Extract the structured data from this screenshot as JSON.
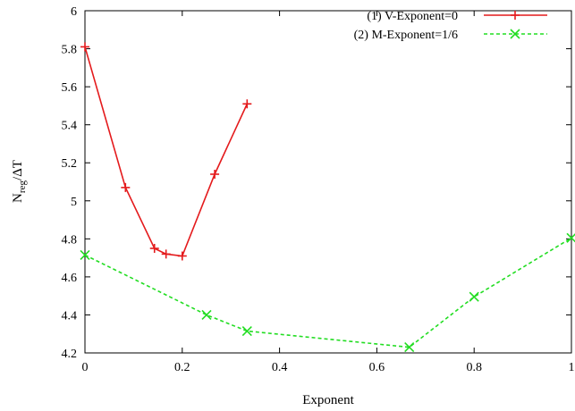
{
  "chart_data": {
    "type": "line",
    "xlabel": "Exponent",
    "ylabel_main": "N",
    "ylabel_sub": "reg",
    "ylabel_tail": "/ΔT",
    "xlim": [
      0,
      1
    ],
    "ylim": [
      4.2,
      6
    ],
    "x_ticks": [
      0,
      0.2,
      0.4,
      0.6,
      0.8,
      1
    ],
    "x_tick_labels": [
      "0",
      "0.2",
      "0.4",
      "0.6",
      "0.8",
      "1"
    ],
    "y_ticks": [
      4.2,
      4.4,
      4.6,
      4.8,
      5,
      5.2,
      5.4,
      5.6,
      5.8,
      6
    ],
    "y_tick_labels": [
      "4.2",
      "4.4",
      "4.6",
      "4.8",
      "5",
      "5.2",
      "5.4",
      "5.6",
      "5.8",
      "6"
    ],
    "grid": false,
    "legend_position": "top-right",
    "series": [
      {
        "name": "(1) V-Exponent=0",
        "color": "#e41a1c",
        "line_style": "solid",
        "marker": "plus",
        "x": [
          0,
          0.0833,
          0.1429,
          0.1667,
          0.2,
          0.2667,
          0.3333
        ],
        "y": [
          5.81,
          5.07,
          4.75,
          4.72,
          4.71,
          5.14,
          5.51
        ]
      },
      {
        "name": "(2) M-Exponent=1/6",
        "color": "#22dd22",
        "line_style": "dashed",
        "marker": "cross",
        "x": [
          0,
          0.25,
          0.3333,
          0.6667,
          0.8,
          1
        ],
        "y": [
          4.715,
          4.4,
          4.315,
          4.23,
          4.495,
          4.805
        ]
      }
    ]
  }
}
